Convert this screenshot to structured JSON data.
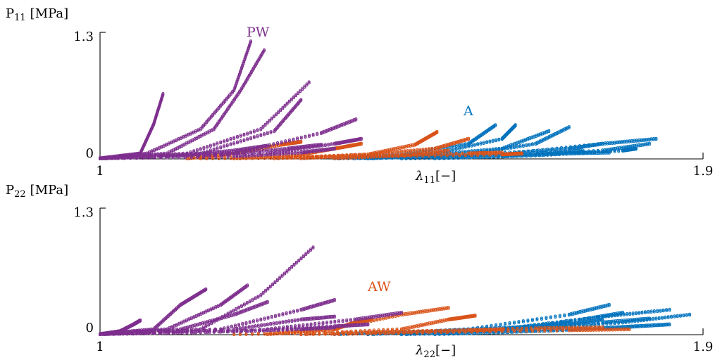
{
  "colors": {
    "A": "#0072BD",
    "AW": "#D95319",
    "PW": "#7E2F8E"
  },
  "chart_data": [
    {
      "type": "scatter",
      "panel": "top",
      "ylabel": "P₁₁ [MPa]",
      "ylabel_main": "P",
      "ylabel_sub": "11",
      "ylabel_unit": "[MPa]",
      "xlabel": "λ₁₁[−]",
      "xlabel_main": "λ",
      "xlabel_sub": "11",
      "xlabel_unit": "[−]",
      "xlim": [
        1,
        1.9
      ],
      "ylim": [
        0,
        1.3
      ],
      "xtick_labels": [
        "1",
        "1.9"
      ],
      "ytick_labels": [
        "0",
        "1.3"
      ],
      "grid": false,
      "annotations": [
        {
          "text": "PW",
          "series": "PW",
          "x": 1.24,
          "y": 1.28
        },
        {
          "text": "A",
          "series": "A",
          "x": 1.548,
          "y": 0.5
        }
      ],
      "series": [
        {
          "name": "PW",
          "curves": [
            [
              [
                1.0,
                0.0
              ],
              [
                1.06,
                0.05
              ],
              [
                1.08,
                0.35
              ],
              [
                1.094,
                0.66
              ]
            ],
            [
              [
                1.0,
                0.0
              ],
              [
                1.07,
                0.05
              ],
              [
                1.15,
                0.3
              ],
              [
                1.2,
                0.7
              ],
              [
                1.225,
                1.2
              ]
            ],
            [
              [
                1.0,
                0.0
              ],
              [
                1.1,
                0.05
              ],
              [
                1.17,
                0.3
              ],
              [
                1.21,
                0.7
              ],
              [
                1.245,
                1.11
              ]
            ],
            [
              [
                1.0,
                0.0
              ],
              [
                1.13,
                0.05
              ],
              [
                1.24,
                0.3
              ],
              [
                1.312,
                0.78
              ]
            ],
            [
              [
                1.0,
                0.0
              ],
              [
                1.15,
                0.05
              ],
              [
                1.26,
                0.28
              ],
              [
                1.3,
                0.6
              ]
            ],
            [
              [
                1.0,
                0.0
              ],
              [
                1.2,
                0.05
              ],
              [
                1.33,
                0.26
              ],
              [
                1.382,
                0.4
              ]
            ],
            [
              [
                1.0,
                0.0
              ],
              [
                1.25,
                0.05
              ],
              [
                1.35,
                0.15
              ],
              [
                1.39,
                0.2
              ]
            ],
            [
              [
                1.0,
                0.0
              ],
              [
                1.18,
                0.04
              ],
              [
                1.28,
                0.1
              ],
              [
                1.33,
                0.14
              ]
            ],
            [
              [
                1.0,
                0.0
              ],
              [
                1.12,
                0.03
              ],
              [
                1.2,
                0.08
              ],
              [
                1.25,
                0.13
              ]
            ],
            [
              [
                1.0,
                0.0
              ],
              [
                1.2,
                0.02
              ],
              [
                1.3,
                0.06
              ],
              [
                1.35,
                0.1
              ]
            ]
          ]
        },
        {
          "name": "AW",
          "curves": [
            [
              [
                1.13,
                0.0
              ],
              [
                1.2,
                0.05
              ],
              [
                1.27,
                0.14
              ],
              [
                1.3,
                0.17
              ]
            ],
            [
              [
                1.26,
                0.0
              ],
              [
                1.4,
                0.04
              ],
              [
                1.47,
                0.14
              ],
              [
                1.503,
                0.27
              ]
            ],
            [
              [
                1.2,
                0.0
              ],
              [
                1.3,
                0.04
              ],
              [
                1.35,
                0.1
              ],
              [
                1.39,
                0.15
              ]
            ],
            [
              [
                1.3,
                0.0
              ],
              [
                1.4,
                0.04
              ],
              [
                1.5,
                0.1
              ],
              [
                1.55,
                0.2
              ]
            ],
            [
              [
                1.2,
                0.0
              ],
              [
                1.4,
                0.02
              ],
              [
                1.6,
                0.04
              ],
              [
                1.63,
                0.05
              ]
            ],
            [
              [
                1.35,
                0.0
              ],
              [
                1.45,
                0.03
              ],
              [
                1.52,
                0.08
              ]
            ],
            [
              [
                1.15,
                0.0
              ],
              [
                1.35,
                0.02
              ],
              [
                1.55,
                0.05
              ],
              [
                1.6,
                0.06
              ]
            ]
          ]
        },
        {
          "name": "A",
          "curves": [
            [
              [
                1.35,
                0.0
              ],
              [
                1.45,
                0.04
              ],
              [
                1.55,
                0.15
              ],
              [
                1.59,
                0.34
              ]
            ],
            [
              [
                1.4,
                0.0
              ],
              [
                1.5,
                0.05
              ],
              [
                1.6,
                0.2
              ],
              [
                1.62,
                0.34
              ]
            ],
            [
              [
                1.35,
                0.0
              ],
              [
                1.5,
                0.04
              ],
              [
                1.6,
                0.1
              ],
              [
                1.67,
                0.28
              ]
            ],
            [
              [
                1.4,
                0.0
              ],
              [
                1.55,
                0.04
              ],
              [
                1.65,
                0.15
              ],
              [
                1.7,
                0.32
              ]
            ],
            [
              [
                1.4,
                0.0
              ],
              [
                1.6,
                0.04
              ],
              [
                1.75,
                0.15
              ],
              [
                1.83,
                0.2
              ]
            ],
            [
              [
                1.45,
                0.0
              ],
              [
                1.6,
                0.02
              ],
              [
                1.75,
                0.08
              ],
              [
                1.82,
                0.15
              ]
            ],
            [
              [
                1.38,
                0.0
              ],
              [
                1.55,
                0.03
              ],
              [
                1.7,
                0.1
              ],
              [
                1.75,
                0.15
              ]
            ],
            [
              [
                1.5,
                0.0
              ],
              [
                1.65,
                0.03
              ],
              [
                1.78,
                0.08
              ],
              [
                1.8,
                0.1
              ]
            ],
            [
              [
                1.35,
                0.0
              ],
              [
                1.5,
                0.02
              ],
              [
                1.65,
                0.05
              ],
              [
                1.72,
                0.08
              ]
            ],
            [
              [
                1.45,
                0.0
              ],
              [
                1.6,
                0.02
              ],
              [
                1.7,
                0.05
              ],
              [
                1.76,
                0.06
              ]
            ]
          ]
        }
      ]
    },
    {
      "type": "scatter",
      "panel": "bottom",
      "ylabel": "P₂₂ [MPa]",
      "ylabel_main": "P",
      "ylabel_sub": "22",
      "ylabel_unit": "[MPa]",
      "xlabel": "λ₂₂[−]",
      "xlabel_main": "λ",
      "xlabel_sub": "22",
      "xlabel_unit": "[−]",
      "xlim": [
        1,
        1.9
      ],
      "ylim": [
        0,
        1.3
      ],
      "xtick_labels": [
        "1",
        "1.9"
      ],
      "ytick_labels": [
        "0",
        "1.3"
      ],
      "grid": false,
      "annotations": [
        {
          "text": "AW",
          "series": "AW",
          "x": 1.41,
          "y": 0.45
        }
      ],
      "series": [
        {
          "name": "PW",
          "curves": [
            [
              [
                1.0,
                0.0
              ],
              [
                1.03,
                0.03
              ],
              [
                1.05,
                0.1
              ],
              [
                1.06,
                0.14
              ]
            ],
            [
              [
                1.0,
                0.0
              ],
              [
                1.08,
                0.05
              ],
              [
                1.12,
                0.3
              ],
              [
                1.158,
                0.46
              ]
            ],
            [
              [
                1.0,
                0.0
              ],
              [
                1.1,
                0.05
              ],
              [
                1.18,
                0.3
              ],
              [
                1.22,
                0.5
              ]
            ],
            [
              [
                1.0,
                0.0
              ],
              [
                1.12,
                0.05
              ],
              [
                1.2,
                0.2
              ],
              [
                1.25,
                0.33
              ]
            ],
            [
              [
                1.0,
                0.0
              ],
              [
                1.15,
                0.05
              ],
              [
                1.24,
                0.4
              ],
              [
                1.318,
                0.89
              ]
            ],
            [
              [
                1.0,
                0.0
              ],
              [
                1.18,
                0.05
              ],
              [
                1.3,
                0.25
              ],
              [
                1.35,
                0.35
              ]
            ],
            [
              [
                1.0,
                0.0
              ],
              [
                1.2,
                0.05
              ],
              [
                1.3,
                0.15
              ],
              [
                1.35,
                0.18
              ]
            ],
            [
              [
                1.0,
                0.0
              ],
              [
                1.22,
                0.03
              ],
              [
                1.35,
                0.08
              ],
              [
                1.4,
                0.1
              ]
            ],
            [
              [
                1.0,
                0.0
              ],
              [
                1.25,
                0.05
              ],
              [
                1.38,
                0.15
              ],
              [
                1.45,
                0.22
              ]
            ],
            [
              [
                1.0,
                0.0
              ],
              [
                1.15,
                0.02
              ],
              [
                1.3,
                0.05
              ],
              [
                1.35,
                0.07
              ]
            ]
          ]
        },
        {
          "name": "AW",
          "curves": [
            [
              [
                1.25,
                0.0
              ],
              [
                1.35,
                0.05
              ],
              [
                1.38,
                0.12
              ],
              [
                1.405,
                0.15
              ]
            ],
            [
              [
                1.25,
                0.0
              ],
              [
                1.35,
                0.06
              ],
              [
                1.45,
                0.2
              ],
              [
                1.52,
                0.27
              ]
            ],
            [
              [
                1.3,
                0.0
              ],
              [
                1.45,
                0.05
              ],
              [
                1.52,
                0.15
              ],
              [
                1.56,
                0.19
              ]
            ],
            [
              [
                1.35,
                0.0
              ],
              [
                1.5,
                0.03
              ],
              [
                1.65,
                0.06
              ],
              [
                1.75,
                0.07
              ]
            ],
            [
              [
                1.3,
                0.0
              ],
              [
                1.5,
                0.02
              ],
              [
                1.7,
                0.04
              ],
              [
                1.79,
                0.05
              ]
            ],
            [
              [
                1.2,
                0.0
              ],
              [
                1.4,
                0.02
              ],
              [
                1.55,
                0.04
              ],
              [
                1.6,
                0.05
              ]
            ]
          ]
        },
        {
          "name": "A",
          "curves": [
            [
              [
                1.35,
                0.0
              ],
              [
                1.55,
                0.04
              ],
              [
                1.7,
                0.1
              ],
              [
                1.75,
                0.15
              ]
            ],
            [
              [
                1.4,
                0.0
              ],
              [
                1.55,
                0.05
              ],
              [
                1.7,
                0.2
              ],
              [
                1.76,
                0.3
              ]
            ],
            [
              [
                1.4,
                0.0
              ],
              [
                1.6,
                0.05
              ],
              [
                1.72,
                0.15
              ],
              [
                1.78,
                0.22
              ]
            ],
            [
              [
                1.4,
                0.0
              ],
              [
                1.6,
                0.05
              ],
              [
                1.75,
                0.18
              ],
              [
                1.85,
                0.25
              ]
            ],
            [
              [
                1.45,
                0.0
              ],
              [
                1.65,
                0.05
              ],
              [
                1.78,
                0.12
              ],
              [
                1.88,
                0.2
              ]
            ],
            [
              [
                1.45,
                0.0
              ],
              [
                1.6,
                0.04
              ],
              [
                1.75,
                0.12
              ],
              [
                1.82,
                0.16
              ]
            ],
            [
              [
                1.5,
                0.0
              ],
              [
                1.65,
                0.03
              ],
              [
                1.8,
                0.08
              ],
              [
                1.85,
                0.1
              ]
            ],
            [
              [
                1.35,
                0.0
              ],
              [
                1.5,
                0.03
              ],
              [
                1.65,
                0.08
              ],
              [
                1.7,
                0.12
              ]
            ],
            [
              [
                1.45,
                0.0
              ],
              [
                1.6,
                0.02
              ],
              [
                1.75,
                0.06
              ],
              [
                1.8,
                0.08
              ]
            ]
          ]
        }
      ]
    }
  ]
}
